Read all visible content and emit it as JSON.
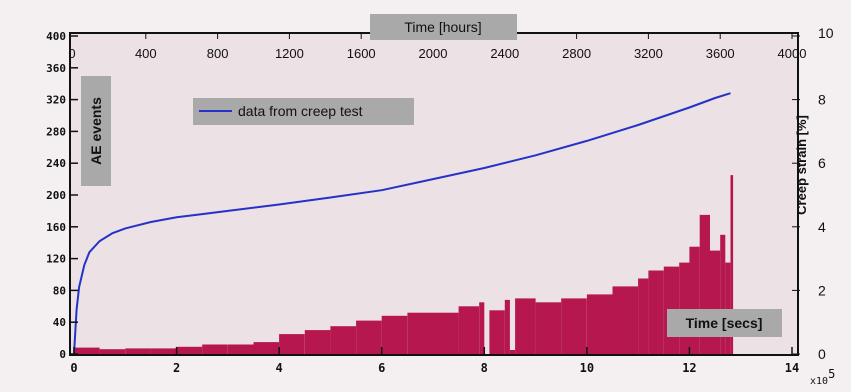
{
  "chart_data": {
    "type": "bar+line",
    "colors": {
      "page_bg": "#f4eff0",
      "plot_bg": "#ece1e4",
      "bars": "#b5174e",
      "line": "#2432c8",
      "label_box": "#a9a9a9",
      "frame": "#111111"
    },
    "bottom_axis": {
      "label": "Time [secs]",
      "range": [
        0,
        14
      ],
      "ticks": [
        0,
        2,
        4,
        6,
        8,
        10,
        12,
        14
      ],
      "tick_labels": [
        "0",
        "2",
        "4",
        "6",
        "8",
        "10",
        "12",
        "14"
      ],
      "multiplier_label": "x10",
      "multiplier_exponent": "5"
    },
    "top_axis": {
      "label": "Time [hours]",
      "range": [
        0,
        4000
      ],
      "ticks": [
        400,
        800,
        1200,
        1600,
        2000,
        2400,
        2800,
        3200,
        3600,
        4000
      ],
      "tick_labels": [
        "400",
        "800",
        "1200",
        "1600",
        "2000",
        "2400",
        "2800",
        "3200",
        "3600",
        "4000"
      ],
      "first_label": "0"
    },
    "left_axis": {
      "label": "AE events",
      "range": [
        0,
        400
      ],
      "ticks": [
        0,
        40,
        80,
        120,
        160,
        200,
        240,
        280,
        320,
        360,
        400
      ],
      "tick_labels": [
        "0",
        "40",
        "80",
        "120",
        "160",
        "200",
        "240",
        "280",
        "320",
        "360",
        "400"
      ]
    },
    "right_axis": {
      "label": "Creep strain [%]",
      "range": [
        0,
        10
      ],
      "ticks": [
        0,
        2,
        4,
        6,
        8,
        10
      ],
      "tick_labels": [
        "0",
        "2",
        "4",
        "6",
        "8",
        "10"
      ]
    },
    "legend": {
      "placement": "top-left",
      "entries": [
        "data from creep test"
      ]
    },
    "series": [
      {
        "name": "data from creep test",
        "type": "line",
        "axis": "bottom/right",
        "x": [
          0,
          0.05,
          0.1,
          0.2,
          0.3,
          0.5,
          0.75,
          1,
          1.5,
          2,
          2.5,
          3,
          4,
          5,
          6,
          7,
          8,
          9,
          10,
          11,
          12,
          12.5,
          12.8
        ],
        "y": [
          0,
          1.4,
          2.1,
          2.8,
          3.2,
          3.55,
          3.8,
          3.95,
          4.15,
          4.3,
          4.4,
          4.5,
          4.7,
          4.92,
          5.15,
          5.5,
          5.85,
          6.25,
          6.7,
          7.2,
          7.75,
          8.05,
          8.2
        ]
      },
      {
        "name": "AE events",
        "type": "bar",
        "axis": "bottom/left",
        "x": [
          0,
          0.5,
          1,
          1.5,
          2,
          2.5,
          3,
          3.5,
          4,
          4.5,
          5,
          5.5,
          6,
          6.5,
          7,
          7.5,
          7.9,
          8,
          8.1,
          8.4,
          8.5,
          8.6,
          9,
          9.5,
          10,
          10.5,
          11,
          11.2,
          11.5,
          11.8,
          12,
          12.2,
          12.4,
          12.6,
          12.7,
          12.8
        ],
        "y": [
          8,
          6,
          7,
          7,
          9,
          12,
          12,
          15,
          25,
          30,
          35,
          42,
          48,
          52,
          52,
          60,
          65,
          0,
          55,
          68,
          5,
          70,
          65,
          70,
          75,
          85,
          95,
          105,
          110,
          115,
          135,
          175,
          130,
          150,
          115,
          225
        ]
      }
    ]
  }
}
